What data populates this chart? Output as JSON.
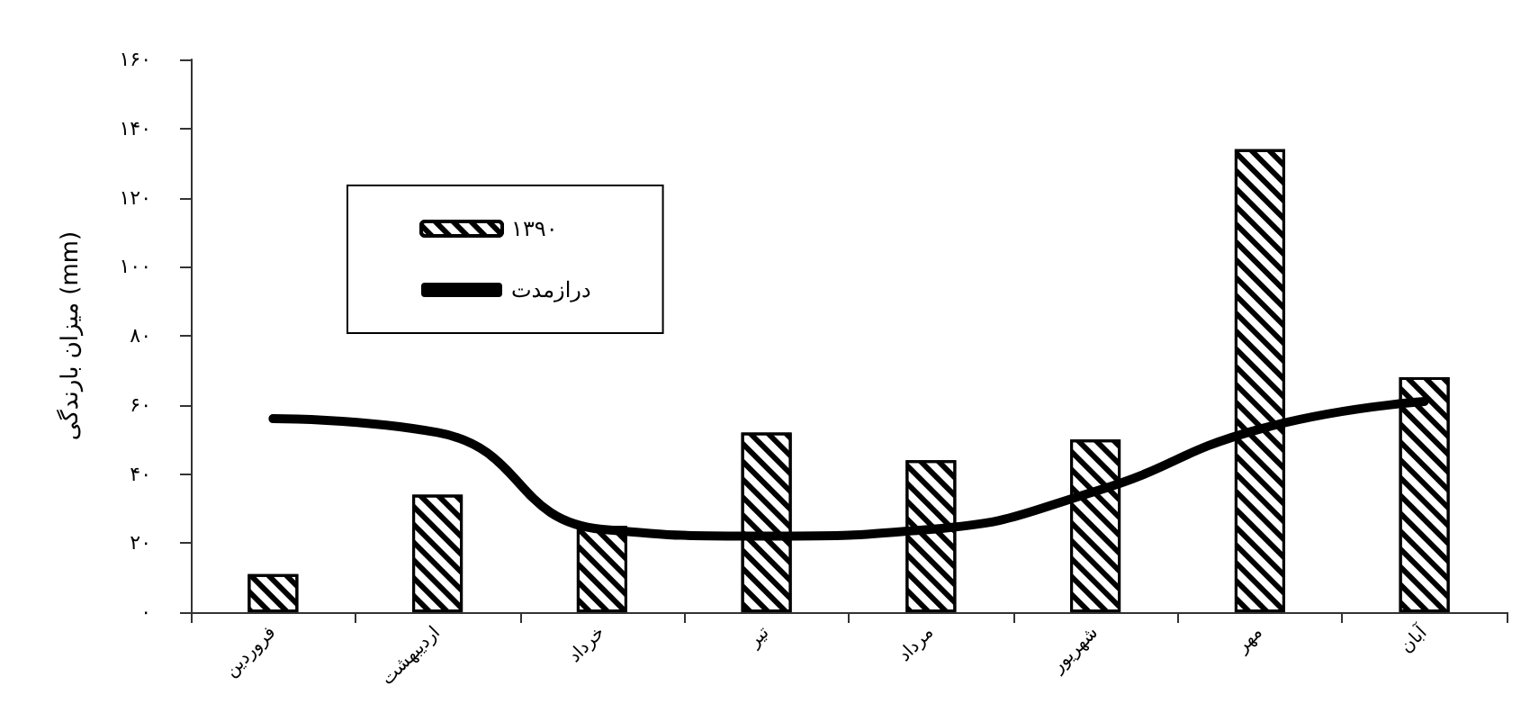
{
  "chart_data": {
    "type": "bar",
    "ylabel": "میزان بارندگی (mm)",
    "categories": [
      "فروردین",
      "اردیبهشت",
      "خرداد",
      "تیر",
      "مرداد",
      "شهریور",
      "مهر",
      "آبان"
    ],
    "series": [
      {
        "name": "۱۳۹۰",
        "color": "#000000",
        "values": [
          11,
          34,
          25,
          52,
          44,
          50,
          134,
          68
        ]
      },
      {
        "name": "درازمدت",
        "type": "line",
        "color": "#000000",
        "values": [
          56,
          52,
          24,
          22,
          24,
          35,
          53,
          61
        ]
      }
    ],
    "ylim": [
      0,
      160
    ],
    "yticks": [
      {
        "value": 0,
        "label": "۰"
      },
      {
        "value": 20,
        "label": "۲۰"
      },
      {
        "value": 40,
        "label": "۴۰"
      },
      {
        "value": 60,
        "label": "۶۰"
      },
      {
        "value": 80,
        "label": "۸۰"
      },
      {
        "value": 100,
        "label": "۱۰۰"
      },
      {
        "value": 120,
        "label": "۱۲۰"
      },
      {
        "value": 140,
        "label": "۱۴۰"
      },
      {
        "value": 160,
        "label": "۱۶۰"
      }
    ],
    "legend": "top left",
    "grid": false,
    "marker": "none",
    "line_style": "solid"
  }
}
